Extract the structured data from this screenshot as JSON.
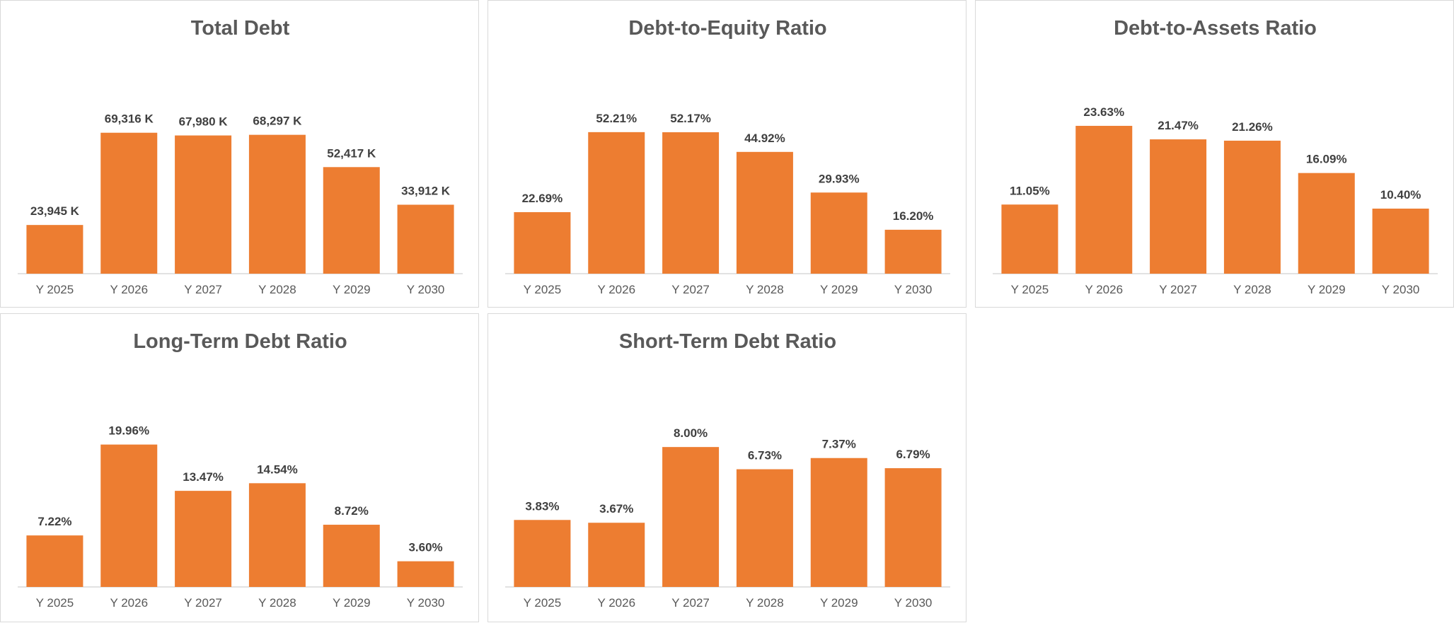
{
  "colors": {
    "bar": "#ED7D31",
    "baseline": "#d9d9d9",
    "border": "#d9d9d9",
    "title": "#595959",
    "label": "#404040"
  },
  "chart_data": [
    {
      "type": "bar",
      "title": "Total Debt",
      "categories": [
        "Y 2025",
        "Y 2026",
        "Y 2027",
        "Y 2028",
        "Y 2029",
        "Y 2030"
      ],
      "values": [
        23945,
        69316,
        67980,
        68297,
        52417,
        33912
      ],
      "value_labels": [
        "23,945 K",
        "69,316 K",
        "67,980 K",
        "68,297 K",
        "52,417 K",
        "33,912 K"
      ],
      "unit": "K",
      "ylim": [
        0,
        80000
      ],
      "grid": false,
      "legend": "none"
    },
    {
      "type": "bar",
      "title": "Debt-to-Equity Ratio",
      "categories": [
        "Y 2025",
        "Y 2026",
        "Y 2027",
        "Y 2028",
        "Y 2029",
        "Y 2030"
      ],
      "values": [
        22.69,
        52.21,
        52.17,
        44.92,
        29.93,
        16.2
      ],
      "value_labels": [
        "22.69%",
        "52.21%",
        "52.17%",
        "44.92%",
        "29.93%",
        "16.20%"
      ],
      "unit": "%",
      "ylim": [
        0,
        60
      ],
      "grid": false,
      "legend": "none"
    },
    {
      "type": "bar",
      "title": "Debt-to-Assets Ratio",
      "categories": [
        "Y 2025",
        "Y 2026",
        "Y 2027",
        "Y 2028",
        "Y 2029",
        "Y 2030"
      ],
      "values": [
        11.05,
        23.63,
        21.47,
        21.26,
        16.09,
        10.4
      ],
      "value_labels": [
        "11.05%",
        "23.63%",
        "21.47%",
        "21.26%",
        "16.09%",
        "10.40%"
      ],
      "unit": "%",
      "ylim": [
        0,
        26
      ],
      "grid": false,
      "legend": "none"
    },
    {
      "type": "bar",
      "title": "Long-Term Debt Ratio",
      "categories": [
        "Y 2025",
        "Y 2026",
        "Y 2027",
        "Y 2028",
        "Y 2029",
        "Y 2030"
      ],
      "values": [
        7.22,
        19.96,
        13.47,
        14.54,
        8.72,
        3.6
      ],
      "value_labels": [
        "7.22%",
        "19.96%",
        "13.47%",
        "14.54%",
        "8.72%",
        "3.60%"
      ],
      "unit": "%",
      "ylim": [
        0,
        22.8
      ],
      "grid": false,
      "legend": "none"
    },
    {
      "type": "bar",
      "title": "Short-Term Debt Ratio",
      "categories": [
        "Y 2025",
        "Y 2026",
        "Y 2027",
        "Y 2028",
        "Y 2029",
        "Y 2030"
      ],
      "values": [
        3.83,
        3.67,
        8.0,
        6.73,
        7.37,
        6.79
      ],
      "value_labels": [
        "3.83%",
        "3.67%",
        "8.00%",
        "6.73%",
        "7.37%",
        "6.79%"
      ],
      "unit": "%",
      "ylim": [
        0,
        9.3
      ],
      "grid": false,
      "legend": "none"
    }
  ]
}
